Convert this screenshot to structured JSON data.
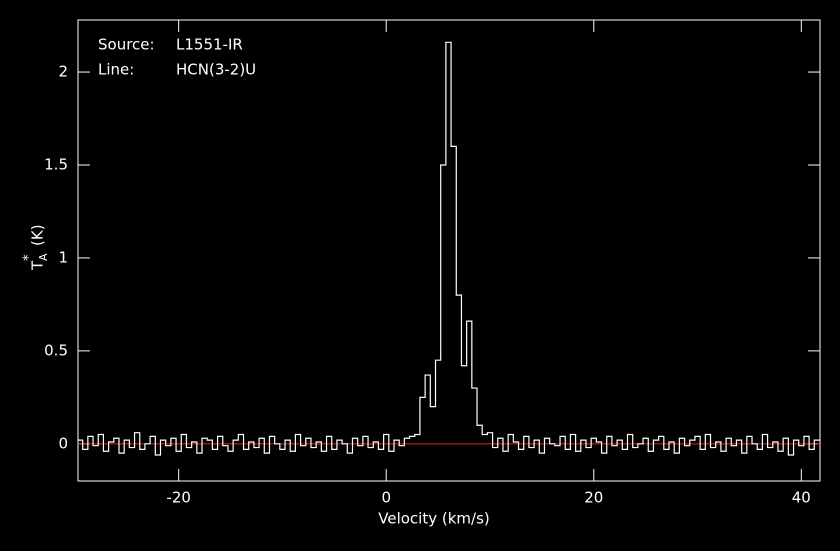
{
  "chart_data": {
    "type": "step",
    "x_label": "Velocity (km/s)",
    "y_label": {
      "base": "T",
      "sup": "*",
      "sub": "A",
      "unit": "(K)"
    },
    "annotations": [
      [
        "Source:",
        "L1551-IR"
      ],
      [
        "Line:",
        "HCN(3-2)U"
      ]
    ],
    "xlim": [
      -29.7,
      41.8
    ],
    "ylim": [
      -0.2,
      2.28
    ],
    "xticks": [
      -20,
      0,
      20,
      40
    ],
    "yticks": [
      0,
      0.5,
      1,
      1.5,
      2
    ],
    "baseline": 0,
    "baseline_color": "#e02020",
    "color": "#ffffff",
    "x": [
      -29.5,
      -29,
      -28.5,
      -28,
      -27.5,
      -27,
      -26.5,
      -26,
      -25.5,
      -25,
      -24.5,
      -24,
      -23.5,
      -23,
      -22.5,
      -22,
      -21.5,
      -21,
      -20.5,
      -20,
      -19.5,
      -19,
      -18.5,
      -18,
      -17.5,
      -17,
      -16.5,
      -16,
      -15.5,
      -15,
      -14.5,
      -14,
      -13.5,
      -13,
      -12.5,
      -12,
      -11.5,
      -11,
      -10.5,
      -10,
      -9.5,
      -9,
      -8.5,
      -8,
      -7.5,
      -7,
      -6.5,
      -6,
      -5.5,
      -5,
      -4.5,
      -4,
      -3.5,
      -3,
      -2.5,
      -2,
      -1.5,
      -1,
      -0.5,
      0,
      0.5,
      1,
      1.5,
      2,
      2.5,
      3,
      3.5,
      4,
      4.5,
      5,
      5.5,
      6,
      6.5,
      7,
      7.5,
      8,
      8.5,
      9,
      9.5,
      10,
      10.5,
      11,
      11.5,
      12,
      12.5,
      13,
      13.5,
      14,
      14.5,
      15,
      15.5,
      16,
      16.5,
      17,
      17.5,
      18,
      18.5,
      19,
      19.5,
      20,
      20.5,
      21,
      21.5,
      22,
      22.5,
      23,
      23.5,
      24,
      24.5,
      25,
      25.5,
      26,
      26.5,
      27,
      27.5,
      28,
      28.5,
      29,
      29.5,
      30,
      30.5,
      31,
      31.5,
      32,
      32.5,
      33,
      33.5,
      34,
      34.5,
      35,
      35.5,
      36,
      36.5,
      37,
      37.5,
      38,
      38.5,
      39,
      39.5,
      40,
      40.5,
      41,
      41.5
    ],
    "values": [
      0.02,
      -0.03,
      0.04,
      -0.01,
      0.05,
      -0.04,
      0.01,
      0.03,
      -0.05,
      0.02,
      -0.02,
      0.06,
      -0.03,
      0.0,
      0.04,
      -0.06,
      0.02,
      -0.01,
      0.03,
      -0.04,
      0.05,
      -0.02,
      0.01,
      -0.05,
      0.03,
      0.02,
      -0.03,
      0.04,
      -0.01,
      -0.04,
      0.02,
      0.05,
      -0.03,
      0.01,
      -0.02,
      0.03,
      -0.05,
      0.04,
      0.0,
      -0.03,
      0.02,
      -0.04,
      0.05,
      -0.01,
      0.03,
      -0.02,
      0.01,
      -0.04,
      0.04,
      -0.03,
      0.02,
      0.0,
      -0.05,
      0.03,
      -0.01,
      0.04,
      -0.02,
      0.01,
      -0.03,
      0.05,
      -0.04,
      0.02,
      -0.01,
      0.03,
      0.04,
      0.05,
      0.25,
      0.37,
      0.2,
      0.45,
      1.5,
      2.16,
      1.6,
      0.8,
      0.42,
      0.66,
      0.3,
      0.1,
      0.05,
      0.06,
      -0.02,
      0.03,
      -0.04,
      0.05,
      0.01,
      -0.03,
      0.04,
      -0.02,
      0.02,
      -0.05,
      0.03,
      0.0,
      -0.01,
      0.04,
      -0.03,
      0.05,
      -0.04,
      0.02,
      -0.02,
      0.03,
      0.01,
      -0.05,
      0.04,
      -0.01,
      0.02,
      -0.03,
      0.05,
      -0.02,
      0.0,
      0.03,
      -0.04,
      0.02,
      0.04,
      -0.03,
      0.01,
      -0.05,
      0.03,
      -0.01,
      0.02,
      0.04,
      -0.03,
      0.05,
      -0.02,
      0.01,
      -0.04,
      0.03,
      -0.01,
      0.02,
      -0.05,
      0.04,
      0.0,
      -0.03,
      0.05,
      -0.02,
      0.01,
      -0.04,
      0.03,
      -0.06,
      0.02,
      -0.01,
      0.04,
      -0.03,
      0.02
    ]
  }
}
